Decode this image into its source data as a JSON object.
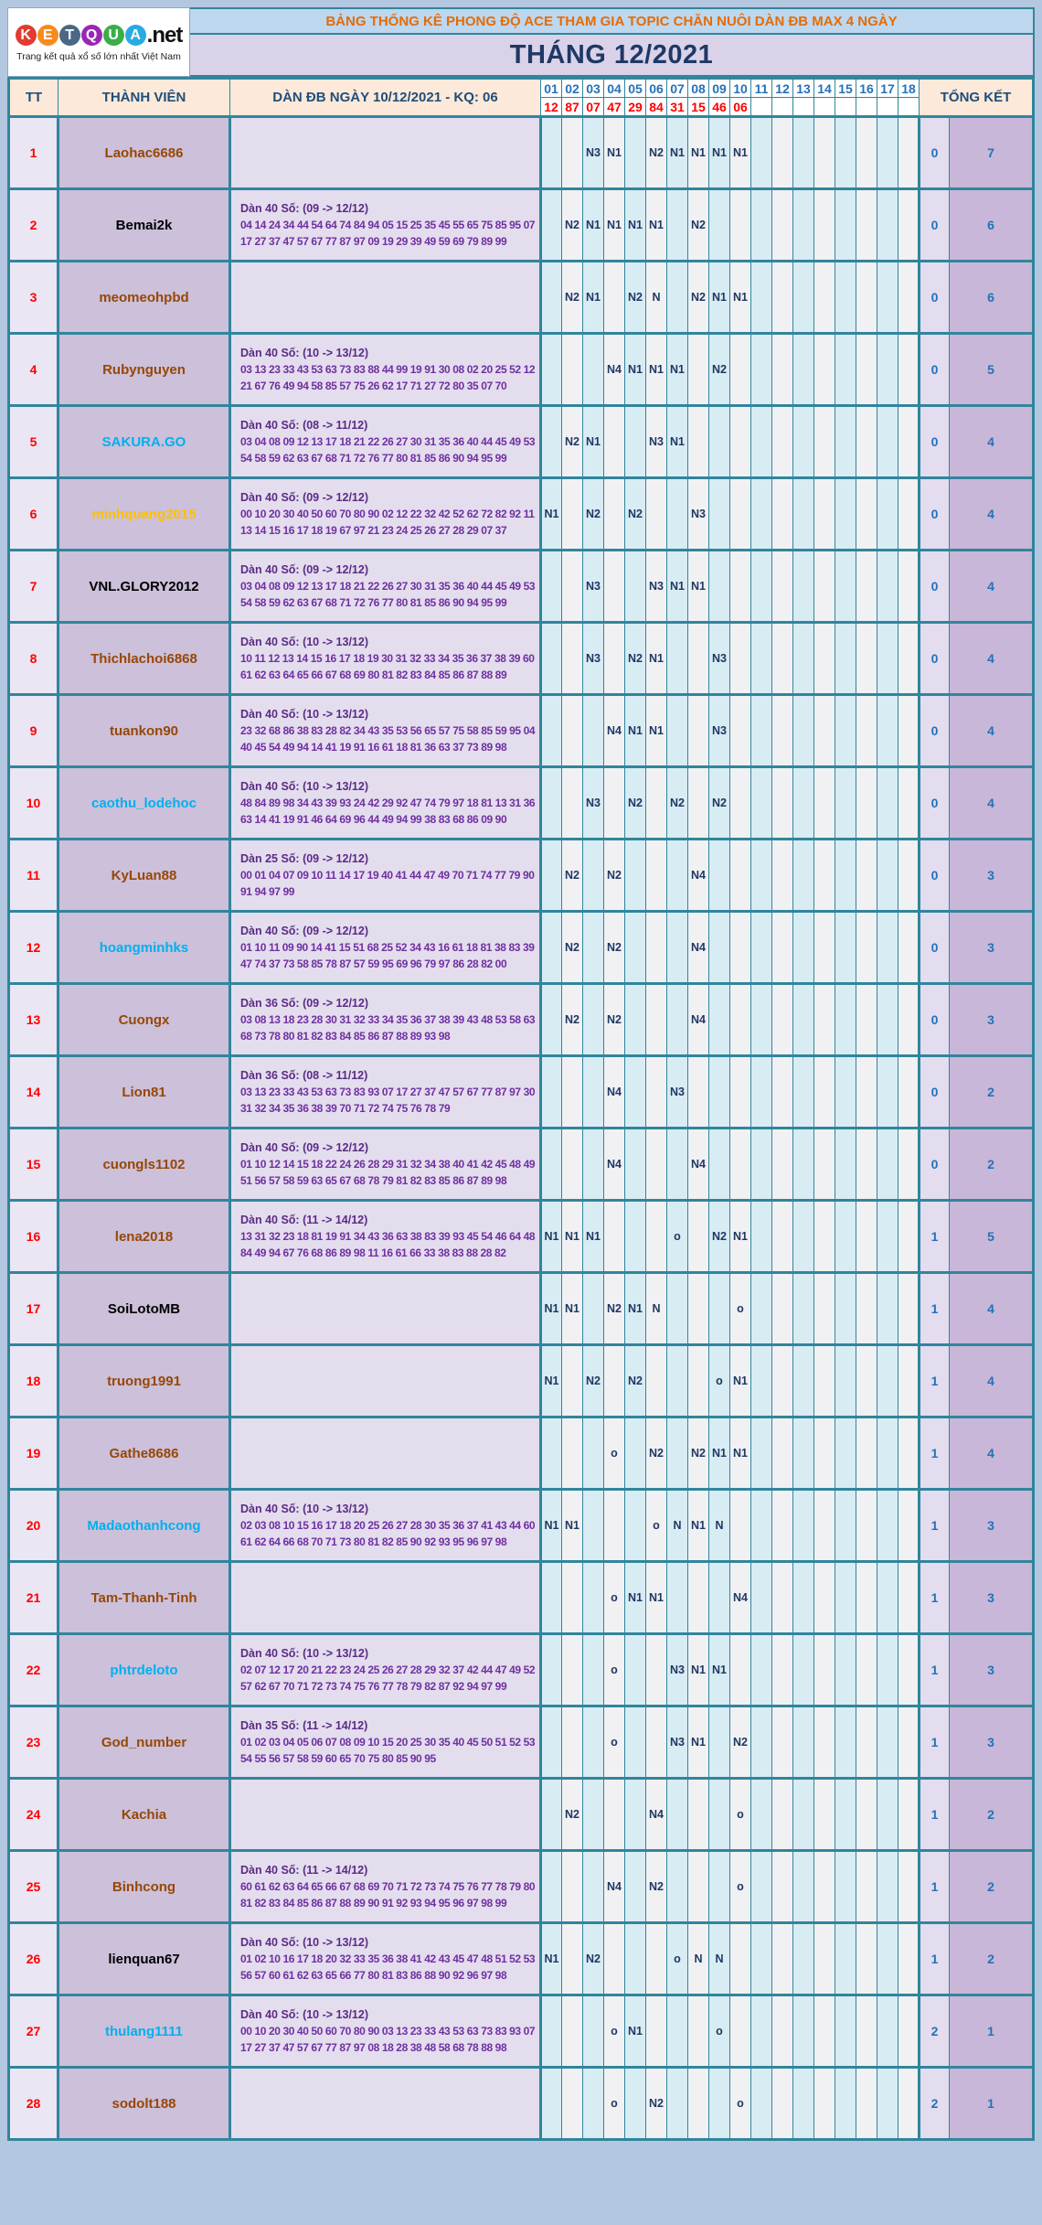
{
  "logo": {
    "letters": [
      {
        "ch": "K",
        "color": "#e03c31"
      },
      {
        "ch": "E",
        "color": "#f68b1f"
      },
      {
        "ch": "T",
        "color": "#4a6785"
      },
      {
        "ch": "Q",
        "color": "#9b26b6"
      },
      {
        "ch": "U",
        "color": "#3cae49"
      },
      {
        "ch": "A",
        "color": "#29abe2"
      }
    ],
    "suffix": ".net",
    "tagline": "Trang kết quả xổ số lớn nhất Việt Nam"
  },
  "banner": {
    "title": "BẢNG THỐNG KÊ PHONG ĐỘ ACE THAM GIA TOPIC CHĂN NUÔI DÀN ĐB MAX 4 NGÀY",
    "month": "THÁNG 12/2021"
  },
  "header": {
    "tt": "TT",
    "member": "THÀNH VIÊN",
    "dan": "DÀN ĐB NGÀY 10/12/2021 - KQ: 06",
    "total": "TỔNG KẾT",
    "day_numbers": [
      "01",
      "02",
      "03",
      "04",
      "05",
      "06",
      "07",
      "08",
      "09",
      "10",
      "11",
      "12",
      "13",
      "14",
      "15",
      "16",
      "17",
      "18"
    ],
    "day_results": [
      "12",
      "87",
      "07",
      "47",
      "29",
      "84",
      "31",
      "15",
      "46",
      "06",
      "",
      "",
      "",
      "",
      "",
      "",
      "",
      ""
    ]
  },
  "colors": {
    "border_teal": "#31859C",
    "banner1_bg": "#bdd7ee",
    "banner1_text": "#e36c0a",
    "banner2_bg": "#d9d2e9",
    "banner2_text": "#1f3864",
    "header_bg": "#fde9d9",
    "header_text": "#1f4e79",
    "day_number_blue": "#2372b8",
    "result_red": "#ff0000",
    "tt_bg": "#eae6f4",
    "member_bg": "#ccc0da",
    "dan_bg": "#e3ddee",
    "dan_purple": "#7030a0",
    "grid_cyan": "#d8ecf3",
    "grid_gray": "#f1f1f3",
    "grid_text_navy": "#1f3864",
    "total_o_bg": "#e3ddef",
    "total_n_bg": "#c8b7d8",
    "page_bg": "#b3c8e0"
  },
  "rows": [
    {
      "tt": "1",
      "member": "Laohac6686",
      "member_color": "#974706",
      "dan_label": "",
      "dan_line1": "",
      "dan_line2": "",
      "cells": [
        "",
        "",
        "N3",
        "N1",
        "",
        "N2",
        "N1",
        "N1",
        "N1",
        "N1",
        "",
        "",
        "",
        "",
        "",
        "",
        "",
        ""
      ],
      "total_o": "0",
      "total_n": "7"
    },
    {
      "tt": "2",
      "member": "Bemai2k",
      "member_color": "#000000",
      "dan_label": "Dàn 40 Số: (09 -> 12/12)",
      "dan_line1": "04 14 24 34 44 54 64 74 84 94 05 15 25 35 45 55 65 75 85 95 07",
      "dan_line2": "17 27 37 47 57 67 77 87 97 09 19 29 39 49 59 69 79 89 99",
      "cells": [
        "",
        "N2",
        "N1",
        "N1",
        "N1",
        "N1",
        "",
        "N2",
        "",
        "",
        "",
        "",
        "",
        "",
        "",
        "",
        "",
        ""
      ],
      "total_o": "0",
      "total_n": "6"
    },
    {
      "tt": "3",
      "member": "meomeohpbd",
      "member_color": "#974706",
      "dan_label": "",
      "dan_line1": "",
      "dan_line2": "",
      "cells": [
        "",
        "N2",
        "N1",
        "",
        "N2",
        "N",
        "",
        "N2",
        "N1",
        "N1",
        "",
        "",
        "",
        "",
        "",
        "",
        "",
        ""
      ],
      "total_o": "0",
      "total_n": "6"
    },
    {
      "tt": "4",
      "member": "Rubynguyen",
      "member_color": "#974706",
      "dan_label": "Dàn 40 Số: (10 -> 13/12)",
      "dan_line1": "03 13 23 33 43 53 63 73 83 88 44 99 19 91 30 08 02 20 25 52 12",
      "dan_line2": "21 67 76 49 94 58 85 57 75 26 62 17 71 27 72 80 35 07 70",
      "cells": [
        "",
        "",
        "",
        "N4",
        "N1",
        "N1",
        "N1",
        "",
        "N2",
        "",
        "",
        "",
        "",
        "",
        "",
        "",
        "",
        ""
      ],
      "total_o": "0",
      "total_n": "5"
    },
    {
      "tt": "5",
      "member": "SAKURA.GO",
      "member_color": "#00b0f0",
      "dan_label": "Dàn 40 Số: (08 -> 11/12)",
      "dan_line1": "03 04 08 09 12 13 17 18 21 22 26 27 30 31 35 36 40 44 45 49 53",
      "dan_line2": "54 58 59 62 63 67 68 71 72 76 77 80 81 85 86 90 94 95 99",
      "cells": [
        "",
        "N2",
        "N1",
        "",
        "",
        "N3",
        "N1",
        "",
        "",
        "",
        "",
        "",
        "",
        "",
        "",
        "",
        "",
        ""
      ],
      "total_o": "0",
      "total_n": "4"
    },
    {
      "tt": "6",
      "member": "minhquang2015",
      "member_color": "#ffc000",
      "dan_label": "Dàn 40 Số: (09 -> 12/12)",
      "dan_line1": "00 10 20 30 40 50 60 70 80 90 02 12 22 32 42 52 62 72 82 92 11",
      "dan_line2": "13 14 15 16 17 18 19 67 97 21 23 24 25 26 27 28 29 07 37",
      "cells": [
        "N1",
        "",
        "N2",
        "",
        "N2",
        "",
        "",
        "N3",
        "",
        "",
        "",
        "",
        "",
        "",
        "",
        "",
        "",
        ""
      ],
      "total_o": "0",
      "total_n": "4"
    },
    {
      "tt": "7",
      "member": "VNL.GLORY2012",
      "member_color": "#000000",
      "dan_label": "Dàn 40 Số: (09 -> 12/12)",
      "dan_line1": "03 04 08 09 12 13 17 18 21 22 26 27 30 31 35 36 40 44 45 49 53",
      "dan_line2": "54 58 59 62 63 67 68 71 72 76 77 80 81 85 86 90 94 95 99",
      "cells": [
        "",
        "",
        "N3",
        "",
        "",
        "N3",
        "N1",
        "N1",
        "",
        "",
        "",
        "",
        "",
        "",
        "",
        "",
        "",
        ""
      ],
      "total_o": "0",
      "total_n": "4"
    },
    {
      "tt": "8",
      "member": "Thichlachoi6868",
      "member_color": "#974706",
      "dan_label": "Dàn 40 Số: (10 -> 13/12)",
      "dan_line1": "10 11 12 13 14 15 16 17 18 19 30 31 32 33 34 35 36 37 38 39 60",
      "dan_line2": "61 62 63 64 65 66 67 68 69 80 81 82 83 84 85 86 87 88 89",
      "cells": [
        "",
        "",
        "N3",
        "",
        "N2",
        "N1",
        "",
        "",
        "N3",
        "",
        "",
        "",
        "",
        "",
        "",
        "",
        "",
        ""
      ],
      "total_o": "0",
      "total_n": "4"
    },
    {
      "tt": "9",
      "member": "tuankon90",
      "member_color": "#974706",
      "dan_label": "Dàn 40 Số: (10 -> 13/12)",
      "dan_line1": "23 32 68 86 38 83 28 82 34 43 35 53 56 65 57 75 58 85 59 95 04",
      "dan_line2": "40 45 54 49 94 14 41 19 91 16 61 18 81 36 63 37 73 89 98",
      "cells": [
        "",
        "",
        "",
        "N4",
        "N1",
        "N1",
        "",
        "",
        "N3",
        "",
        "",
        "",
        "",
        "",
        "",
        "",
        "",
        ""
      ],
      "total_o": "0",
      "total_n": "4"
    },
    {
      "tt": "10",
      "member": "caothu_lodehoc",
      "member_color": "#00b0f0",
      "dan_label": "Dàn 40 Số: (10 -> 13/12)",
      "dan_line1": "48 84 89 98 34 43 39 93 24 42 29 92 47 74 79 97 18 81 13 31 36",
      "dan_line2": "63 14 41 19 91 46 64 69 96 44 49 94 99 38 83 68 86 09 90",
      "cells": [
        "",
        "",
        "N3",
        "",
        "N2",
        "",
        "N2",
        "",
        "N2",
        "",
        "",
        "",
        "",
        "",
        "",
        "",
        "",
        ""
      ],
      "total_o": "0",
      "total_n": "4"
    },
    {
      "tt": "11",
      "member": "KyLuan88",
      "member_color": "#974706",
      "dan_label": "Dàn 25 Số: (09 -> 12/12)",
      "dan_line1": "00 01 04 07 09 10 11 14 17 19 40 41 44 47 49 70 71 74 77 79 90",
      "dan_line2": "91 94 97 99",
      "cells": [
        "",
        "N2",
        "",
        "N2",
        "",
        "",
        "",
        "N4",
        "",
        "",
        "",
        "",
        "",
        "",
        "",
        "",
        "",
        ""
      ],
      "total_o": "0",
      "total_n": "3"
    },
    {
      "tt": "12",
      "member": "hoangminhks",
      "member_color": "#00b0f0",
      "dan_label": "Dàn 40 Số: (09 -> 12/12)",
      "dan_line1": "01 10 11 09 90 14 41 15 51 68 25 52 34 43 16 61 18 81 38 83 39",
      "dan_line2": "47 74 37 73 58 85 78 87 57 59 95 69 96 79 97 86 28 82 00",
      "cells": [
        "",
        "N2",
        "",
        "N2",
        "",
        "",
        "",
        "N4",
        "",
        "",
        "",
        "",
        "",
        "",
        "",
        "",
        "",
        ""
      ],
      "total_o": "0",
      "total_n": "3"
    },
    {
      "tt": "13",
      "member": "Cuongx",
      "member_color": "#974706",
      "dan_label": "Dàn 36 Số: (09 -> 12/12)",
      "dan_line1": "03 08 13 18 23 28 30 31 32 33 34 35 36 37 38 39 43 48 53 58 63",
      "dan_line2": "68 73 78 80 81 82 83 84 85 86 87 88 89 93 98",
      "cells": [
        "",
        "N2",
        "",
        "N2",
        "",
        "",
        "",
        "N4",
        "",
        "",
        "",
        "",
        "",
        "",
        "",
        "",
        "",
        ""
      ],
      "total_o": "0",
      "total_n": "3"
    },
    {
      "tt": "14",
      "member": "Lion81",
      "member_color": "#974706",
      "dan_label": "Dàn 36 Số: (08 -> 11/12)",
      "dan_line1": "03 13 23 33 43 53 63 73 83 93 07 17 27 37 47 57 67 77 87 97 30",
      "dan_line2": "31 32 34 35 36 38 39 70 71 72 74 75 76 78 79",
      "cells": [
        "",
        "",
        "",
        "N4",
        "",
        "",
        "N3",
        "",
        "",
        "",
        "",
        "",
        "",
        "",
        "",
        "",
        "",
        ""
      ],
      "total_o": "0",
      "total_n": "2"
    },
    {
      "tt": "15",
      "member": "cuongls1102",
      "member_color": "#974706",
      "dan_label": "Dàn 40 Số: (09 -> 12/12)",
      "dan_line1": "01 10 12 14 15 18 22 24 26 28 29 31 32 34 38 40 41 42 45 48 49",
      "dan_line2": "51 56 57 58 59 63 65 67 68 78 79 81 82 83 85 86 87 89 98",
      "cells": [
        "",
        "",
        "",
        "N4",
        "",
        "",
        "",
        "N4",
        "",
        "",
        "",
        "",
        "",
        "",
        "",
        "",
        "",
        ""
      ],
      "total_o": "0",
      "total_n": "2"
    },
    {
      "tt": "16",
      "member": "lena2018",
      "member_color": "#974706",
      "dan_label": "Dàn 40 Số: (11 -> 14/12)",
      "dan_line1": "13 31 32 23 18 81 19 91 34 43 36 63 38 83 39 93 45 54 46 64 48",
      "dan_line2": "84 49 94 67 76 68 86 89 98 11 16 61 66 33 38 83 88 28 82",
      "cells": [
        "N1",
        "N1",
        "N1",
        "",
        "",
        "",
        "o",
        "",
        "N2",
        "N1",
        "",
        "",
        "",
        "",
        "",
        "",
        "",
        ""
      ],
      "total_o": "1",
      "total_n": "5"
    },
    {
      "tt": "17",
      "member": "SoiLotoMB",
      "member_color": "#000000",
      "dan_label": "",
      "dan_line1": "",
      "dan_line2": "",
      "cells": [
        "N1",
        "N1",
        "",
        "N2",
        "N1",
        "N",
        "",
        "",
        "",
        "o",
        "",
        "",
        "",
        "",
        "",
        "",
        "",
        ""
      ],
      "total_o": "1",
      "total_n": "4"
    },
    {
      "tt": "18",
      "member": "truong1991",
      "member_color": "#974706",
      "dan_label": "",
      "dan_line1": "",
      "dan_line2": "",
      "cells": [
        "N1",
        "",
        "N2",
        "",
        "N2",
        "",
        "",
        "",
        "o",
        "N1",
        "",
        "",
        "",
        "",
        "",
        "",
        "",
        ""
      ],
      "total_o": "1",
      "total_n": "4"
    },
    {
      "tt": "19",
      "member": "Gathe8686",
      "member_color": "#974706",
      "dan_label": "",
      "dan_line1": "",
      "dan_line2": "",
      "cells": [
        "",
        "",
        "",
        "o",
        "",
        "N2",
        "",
        "N2",
        "N1",
        "N1",
        "",
        "",
        "",
        "",
        "",
        "",
        "",
        ""
      ],
      "total_o": "1",
      "total_n": "4"
    },
    {
      "tt": "20",
      "member": "Madaothanhcong",
      "member_color": "#00b0f0",
      "dan_label": "Dàn 40 Số: (10 -> 13/12)",
      "dan_line1": "02 03 08 10 15 16 17 18 20 25 26 27 28 30 35 36 37 41 43 44 60",
      "dan_line2": "61 62 64 66 68 70 71 73 80 81 82 85 90 92 93 95 96 97 98",
      "cells": [
        "N1",
        "N1",
        "",
        "",
        "",
        "o",
        "N",
        "N1",
        "N",
        "",
        "",
        "",
        "",
        "",
        "",
        "",
        "",
        ""
      ],
      "total_o": "1",
      "total_n": "3"
    },
    {
      "tt": "21",
      "member": "Tam-Thanh-Tinh",
      "member_color": "#974706",
      "dan_label": "",
      "dan_line1": "",
      "dan_line2": "",
      "cells": [
        "",
        "",
        "",
        "o",
        "N1",
        "N1",
        "",
        "",
        "",
        "N4",
        "",
        "",
        "",
        "",
        "",
        "",
        "",
        ""
      ],
      "total_o": "1",
      "total_n": "3"
    },
    {
      "tt": "22",
      "member": "phtrdeloto",
      "member_color": "#00b0f0",
      "dan_label": "Dàn 40 Số: (10 -> 13/12)",
      "dan_line1": "02 07 12 17 20 21 22 23 24 25 26 27 28 29 32 37 42 44 47 49 52",
      "dan_line2": "57 62 67 70 71 72 73 74 75 76 77 78 79 82 87 92 94 97 99",
      "cells": [
        "",
        "",
        "",
        "o",
        "",
        "",
        "N3",
        "N1",
        "N1",
        "",
        "",
        "",
        "",
        "",
        "",
        "",
        "",
        ""
      ],
      "total_o": "1",
      "total_n": "3"
    },
    {
      "tt": "23",
      "member": "God_number",
      "member_color": "#974706",
      "dan_label": "Dàn 35 Số: (11 -> 14/12)",
      "dan_line1": "01 02 03 04 05 06 07 08 09 10 15 20 25 30 35 40 45 50 51 52 53",
      "dan_line2": "54 55 56 57 58 59 60 65 70 75 80 85 90 95",
      "cells": [
        "",
        "",
        "",
        "o",
        "",
        "",
        "N3",
        "N1",
        "",
        "N2",
        "",
        "",
        "",
        "",
        "",
        "",
        "",
        ""
      ],
      "total_o": "1",
      "total_n": "3"
    },
    {
      "tt": "24",
      "member": "Kachia",
      "member_color": "#974706",
      "dan_label": "",
      "dan_line1": "",
      "dan_line2": "",
      "cells": [
        "",
        "N2",
        "",
        "",
        "",
        "N4",
        "",
        "",
        "",
        "o",
        "",
        "",
        "",
        "",
        "",
        "",
        "",
        ""
      ],
      "total_o": "1",
      "total_n": "2"
    },
    {
      "tt": "25",
      "member": "Binhcong",
      "member_color": "#974706",
      "dan_label": "Dàn 40 Số: (11 -> 14/12)",
      "dan_line1": "60 61 62 63 64 65 66 67 68 69 70 71 72 73 74 75 76 77 78 79 80",
      "dan_line2": "81 82 83 84 85 86 87 88 89 90 91 92 93 94 95 96 97 98 99",
      "cells": [
        "",
        "",
        "",
        "N4",
        "",
        "N2",
        "",
        "",
        "",
        "o",
        "",
        "",
        "",
        "",
        "",
        "",
        "",
        ""
      ],
      "total_o": "1",
      "total_n": "2"
    },
    {
      "tt": "26",
      "member": "lienquan67",
      "member_color": "#000000",
      "dan_label": "Dàn 40 Số: (10 -> 13/12)",
      "dan_line1": "01 02 10 16 17 18 20 32 33 35 36 38 41 42 43 45 47 48 51 52 53",
      "dan_line2": "56 57 60 61 62 63 65 66 77 80 81 83 86 88 90 92 96 97 98",
      "cells": [
        "N1",
        "",
        "N2",
        "",
        "",
        "",
        "o",
        "N",
        "N",
        "",
        "",
        "",
        "",
        "",
        "",
        "",
        "",
        ""
      ],
      "total_o": "1",
      "total_n": "2"
    },
    {
      "tt": "27",
      "member": "thulang1111",
      "member_color": "#00b0f0",
      "dan_label": "Dàn 40 Số: (10 -> 13/12)",
      "dan_line1": "00 10 20 30 40 50 60 70 80 90 03 13 23 33 43 53 63 73 83 93 07",
      "dan_line2": "17 27 37 47 57 67 77 87 97 08 18 28 38 48 58 68 78 88 98",
      "cells": [
        "",
        "",
        "",
        "o",
        "N1",
        "",
        "",
        "",
        "o",
        "",
        "",
        "",
        "",
        "",
        "",
        "",
        "",
        ""
      ],
      "total_o": "2",
      "total_n": "1"
    },
    {
      "tt": "28",
      "member": "sodolt188",
      "member_color": "#974706",
      "dan_label": "",
      "dan_line1": "",
      "dan_line2": "",
      "cells": [
        "",
        "",
        "",
        "o",
        "",
        "N2",
        "",
        "",
        "",
        "o",
        "",
        "",
        "",
        "",
        "",
        "",
        "",
        ""
      ],
      "total_o": "2",
      "total_n": "1"
    }
  ]
}
